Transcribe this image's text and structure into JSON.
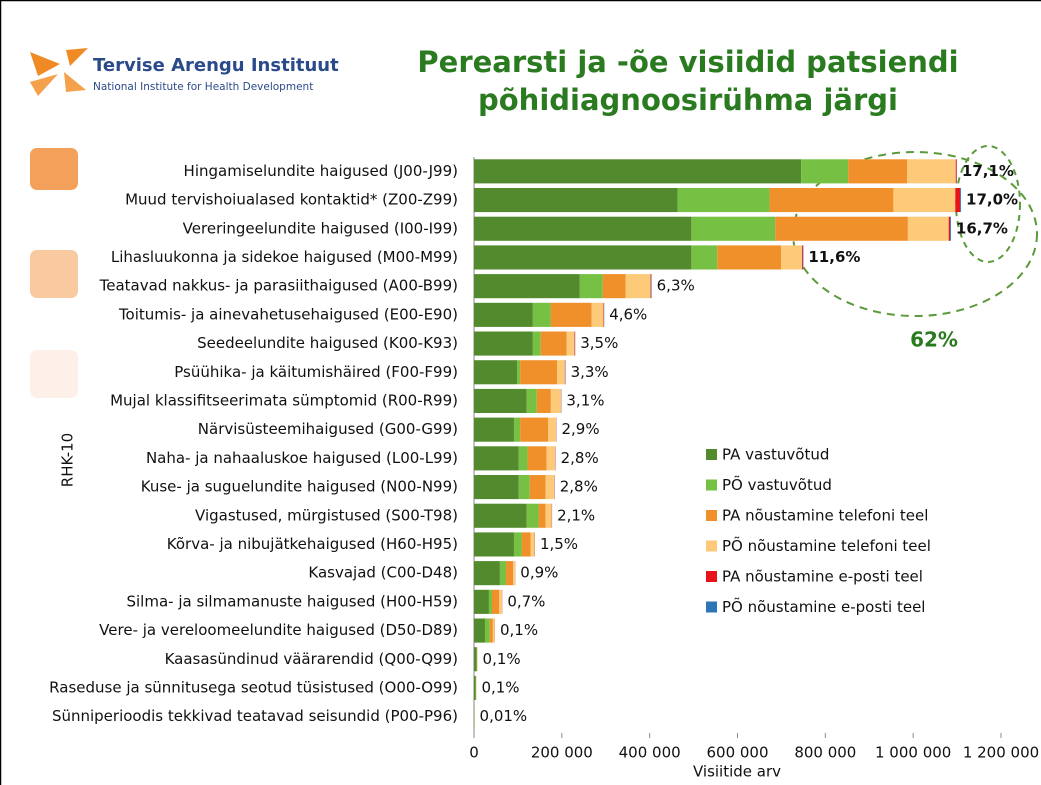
{
  "logo": {
    "name": "Tervise Arengu Instituut",
    "subtitle": "National Institute for Health Development"
  },
  "chart_data": {
    "type": "stacked_barh",
    "title": [
      "Perearsti ja -õe visiidid patsiendi",
      "põhidiagnoosirühma järgi"
    ],
    "y_label": "RHK-10",
    "x_label": "Visiitide arv",
    "annotation": "62%",
    "categories": [
      "Hingamiselundite haigused (J00-J99)",
      "Muud tervishoiualased kontaktid* (Z00-Z99)",
      "Vereringeelundite haigused (I00-I99)",
      "Lihasluukonna ja sidekoe haigused (M00-M99)",
      "Teatavad nakkus- ja parasiithaigused (A00-B99)",
      "Toitumis- ja  ainevahetusehaigused (E00-E90)",
      "Seedeelundite haigused (K00-K93)",
      "Psüühika- ja käitumishäired (F00-F99)",
      "Mujal klassifitseerimata sümptomid (R00-R99)",
      "Närvisüsteemihaigused (G00-G99)",
      "Naha- ja nahaaluskoe haigused (L00-L99)",
      "Kuse- ja suguelundite haigused (N00-N99)",
      "Vigastused, mürgistused (S00-T98)",
      "Kõrva- ja nibujätkehaigused (H60-H95)",
      "Kasvajad (C00-D48)",
      "Silma- ja silmamanuste haigused (H00-H59)",
      "Vere- ja vereloomeelundite haigused (D50-D89)",
      "Kaasasündinud väärarendid (Q00-Q99)",
      "Raseduse ja sünnitusega seotud tüsistused (O00-O99)",
      "Sünniperioodis tekkivad teatavad seisundid (P00-P96)"
    ],
    "series": [
      {
        "name": "PA vastuvõtud",
        "color": "#548a2e",
        "values": [
          745000,
          464000,
          495000,
          495000,
          241000,
          134000,
          134000,
          98000,
          120000,
          91000,
          102000,
          102000,
          120000,
          91000,
          59000,
          34000,
          25000,
          6000,
          4000,
          1000
        ]
      },
      {
        "name": "PÕ vastuvõtud",
        "color": "#76c043",
        "values": [
          107000,
          209000,
          191000,
          59000,
          52000,
          41000,
          18000,
          7000,
          23000,
          14000,
          20000,
          25000,
          27000,
          18000,
          14000,
          7000,
          11000,
          1000,
          500,
          100
        ]
      },
      {
        "name": "PA nõustamine telefoni teel",
        "color": "#f0902a",
        "values": [
          134000,
          282000,
          302000,
          145000,
          52000,
          93000,
          59000,
          84000,
          32000,
          64000,
          43000,
          36000,
          16000,
          20000,
          16000,
          16000,
          7000,
          500,
          500,
          50
        ]
      },
      {
        "name": "PÕ nõustamine telefoni teel",
        "color": "#fdca7a",
        "values": [
          111000,
          141000,
          93000,
          48000,
          57000,
          27000,
          18000,
          18000,
          23000,
          18000,
          20000,
          20000,
          14000,
          9000,
          4500,
          7000,
          4500,
          500,
          500,
          50
        ]
      },
      {
        "name": "PA nõustamine e-posti teel",
        "color": "#e8121a",
        "values": [
          2000,
          11000,
          3000,
          2000,
          1500,
          1000,
          1000,
          1000,
          500,
          500,
          500,
          500,
          500,
          500,
          300,
          300,
          200,
          50,
          50,
          10
        ]
      },
      {
        "name": "PÕ nõustamine e-posti teel",
        "color": "#2e75b6",
        "values": [
          500,
          2000,
          2000,
          1000,
          1000,
          500,
          500,
          500,
          500,
          300,
          300,
          300,
          300,
          300,
          200,
          200,
          100,
          20,
          20,
          5
        ]
      }
    ],
    "share_values": [
      17.1,
      17.0,
      16.7,
      11.6,
      6.3,
      4.6,
      3.5,
      3.3,
      3.1,
      2.9,
      2.8,
      2.8,
      2.1,
      1.5,
      0.9,
      0.7,
      0.1,
      0.1,
      0.1,
      0.01
    ],
    "share_labels": [
      "17,1%",
      "17,0%",
      "16,7%",
      "11,6%",
      "6,3%",
      "4,6%",
      "3,5%",
      "3,3%",
      "3,1%",
      "2,9%",
      "2,8%",
      "2,8%",
      "2,1%",
      "1,5%",
      "0,9%",
      "0,7%",
      "0,1%",
      "0,1%",
      "0,1%",
      "0,01%"
    ],
    "xlim": [
      0,
      1200000
    ],
    "xticks": [
      0,
      {
        "value": 200000,
        "label": "200 000"
      },
      {
        "value": 400000,
        "label": "400 000"
      },
      {
        "value": 600000,
        "label": "600 000"
      },
      {
        "value": 800000,
        "label": "800 000"
      },
      {
        "value": 1000000,
        "label": "1 000 000"
      },
      {
        "value": 1200000,
        "label": "1 200 000"
      }
    ],
    "legend": "center-right"
  }
}
